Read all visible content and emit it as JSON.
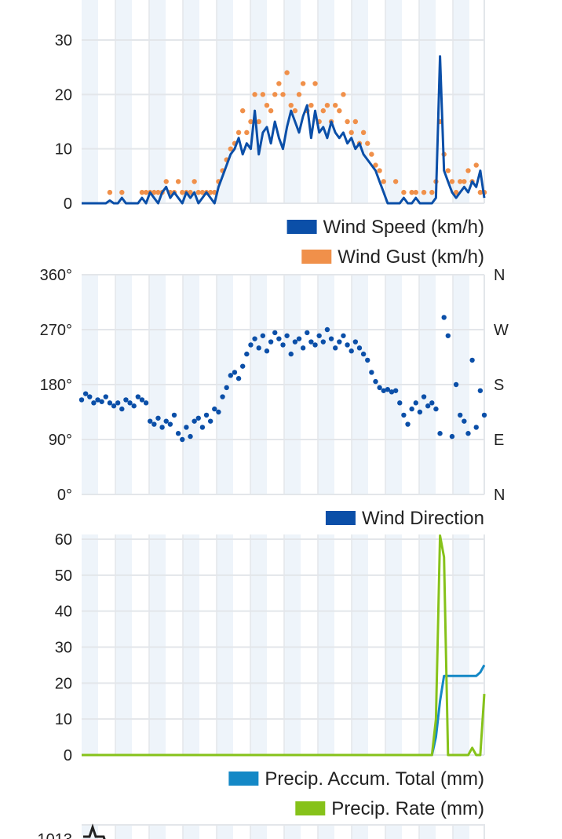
{
  "colors": {
    "wind_speed": "#0b4fa8",
    "wind_gust": "#f0904a",
    "wind_direction": "#0b4fa8",
    "precip_accum": "#1488c6",
    "precip_rate": "#86c21a",
    "stripe": "#eef4fa",
    "grid": "#e3e6ea"
  },
  "chart_data": [
    {
      "type": "line",
      "ylim": [
        0,
        37
      ],
      "yticks": [
        "0",
        "10",
        "20",
        "30"
      ],
      "ytick_values": [
        0,
        10,
        20,
        30
      ],
      "grid": true,
      "legend_placement": "bottom-right",
      "series": [
        {
          "name": "Wind Speed (km/h)",
          "type": "line",
          "values": [
            0,
            0,
            0,
            0,
            0,
            0,
            0,
            0.5,
            0,
            0,
            1,
            0,
            0,
            0,
            0,
            1,
            0,
            2,
            1,
            0,
            2,
            3,
            1,
            2,
            1,
            0,
            2,
            1,
            2,
            0,
            1,
            2,
            1,
            0,
            3,
            5,
            7,
            9,
            10,
            12,
            9,
            11,
            10,
            17,
            9,
            13,
            14,
            11,
            15,
            12,
            10,
            14,
            17,
            15,
            13,
            16,
            18,
            12,
            17,
            13,
            14,
            12,
            15,
            13,
            12,
            13,
            11,
            12,
            10,
            11,
            9,
            8,
            7,
            6,
            4,
            2,
            0,
            0,
            0,
            0,
            1,
            0,
            0,
            1,
            0,
            0,
            0,
            0,
            1,
            27,
            6,
            4,
            2,
            1,
            2,
            3,
            2,
            4,
            3,
            6,
            1
          ]
        },
        {
          "name": "Wind Gust (km/h)",
          "type": "scatter",
          "values": [
            null,
            null,
            null,
            null,
            null,
            null,
            null,
            2,
            null,
            null,
            2,
            null,
            null,
            null,
            null,
            2,
            2,
            2,
            2,
            2,
            2,
            4,
            2,
            2,
            4,
            2,
            2,
            2,
            4,
            2,
            2,
            2,
            2,
            2,
            4,
            6,
            8,
            10,
            11,
            13,
            17,
            13,
            15,
            20,
            15,
            20,
            18,
            17,
            20,
            22,
            20,
            24,
            18,
            17,
            20,
            22,
            17,
            18,
            22,
            15,
            17,
            18,
            15,
            18,
            17,
            20,
            15,
            13,
            15,
            11,
            13,
            11,
            9,
            7,
            6,
            4,
            null,
            null,
            4,
            null,
            2,
            null,
            2,
            2,
            null,
            2,
            null,
            2,
            4,
            15,
            9,
            6,
            4,
            2,
            4,
            4,
            6,
            4,
            7,
            2,
            2
          ]
        }
      ]
    },
    {
      "type": "scatter",
      "ylim": [
        0,
        360
      ],
      "yticks": [
        "0°",
        "90°",
        "180°",
        "270°",
        "360°"
      ],
      "ytick_values": [
        0,
        90,
        180,
        270,
        360
      ],
      "yticks_right": [
        "N",
        "E",
        "S",
        "W",
        "N"
      ],
      "grid": true,
      "legend_placement": "bottom-right",
      "series": [
        {
          "name": "Wind Direction",
          "values": [
            155,
            165,
            160,
            150,
            155,
            152,
            160,
            150,
            145,
            150,
            140,
            155,
            150,
            145,
            160,
            155,
            150,
            120,
            115,
            125,
            110,
            120,
            115,
            130,
            100,
            90,
            110,
            95,
            120,
            125,
            110,
            130,
            120,
            140,
            135,
            160,
            175,
            195,
            200,
            190,
            210,
            230,
            245,
            255,
            240,
            260,
            235,
            250,
            265,
            255,
            245,
            260,
            230,
            250,
            255,
            240,
            265,
            250,
            245,
            260,
            250,
            270,
            255,
            240,
            250,
            260,
            245,
            235,
            250,
            240,
            230,
            220,
            200,
            185,
            175,
            170,
            172,
            168,
            170,
            150,
            130,
            115,
            140,
            150,
            135,
            160,
            145,
            150,
            140,
            100,
            290,
            260,
            95,
            180,
            130,
            120,
            100,
            220,
            110,
            170,
            130
          ]
        }
      ]
    },
    {
      "type": "line",
      "ylim": [
        0,
        60
      ],
      "yticks": [
        "0",
        "10",
        "20",
        "30",
        "40",
        "50",
        "60"
      ],
      "ytick_values": [
        0,
        10,
        20,
        30,
        40,
        50,
        60
      ],
      "grid": true,
      "legend_placement": "bottom-right",
      "series": [
        {
          "name": "Precip. Accum. Total (mm)",
          "values": [
            0,
            0,
            0,
            0,
            0,
            0,
            0,
            0,
            0,
            0,
            0,
            0,
            0,
            0,
            0,
            0,
            0,
            0,
            0,
            0,
            0,
            0,
            0,
            0,
            0,
            0,
            0,
            0,
            0,
            0,
            0,
            0,
            0,
            0,
            0,
            0,
            0,
            0,
            0,
            0,
            0,
            0,
            0,
            0,
            0,
            0,
            0,
            0,
            0,
            0,
            0,
            0,
            0,
            0,
            0,
            0,
            0,
            0,
            0,
            0,
            0,
            0,
            0,
            0,
            0,
            0,
            0,
            0,
            0,
            0,
            0,
            0,
            0,
            0,
            0,
            0,
            0,
            0,
            0,
            0,
            0,
            0,
            0,
            0,
            0,
            0,
            0,
            0,
            5,
            15,
            22,
            22,
            22,
            22,
            22,
            22,
            22,
            22,
            22,
            23,
            25
          ]
        },
        {
          "name": "Precip. Rate (mm)",
          "values": [
            0,
            0,
            0,
            0,
            0,
            0,
            0,
            0,
            0,
            0,
            0,
            0,
            0,
            0,
            0,
            0,
            0,
            0,
            0,
            0,
            0,
            0,
            0,
            0,
            0,
            0,
            0,
            0,
            0,
            0,
            0,
            0,
            0,
            0,
            0,
            0,
            0,
            0,
            0,
            0,
            0,
            0,
            0,
            0,
            0,
            0,
            0,
            0,
            0,
            0,
            0,
            0,
            0,
            0,
            0,
            0,
            0,
            0,
            0,
            0,
            0,
            0,
            0,
            0,
            0,
            0,
            0,
            0,
            0,
            0,
            0,
            0,
            0,
            0,
            0,
            0,
            0,
            0,
            0,
            0,
            0,
            0,
            0,
            0,
            0,
            0,
            0,
            0,
            10,
            61,
            55,
            0,
            0,
            0,
            0,
            0,
            0,
            2,
            0,
            0,
            17
          ]
        }
      ]
    },
    {
      "type": "line",
      "yticks": [
        "1013"
      ],
      "partial": true
    }
  ]
}
